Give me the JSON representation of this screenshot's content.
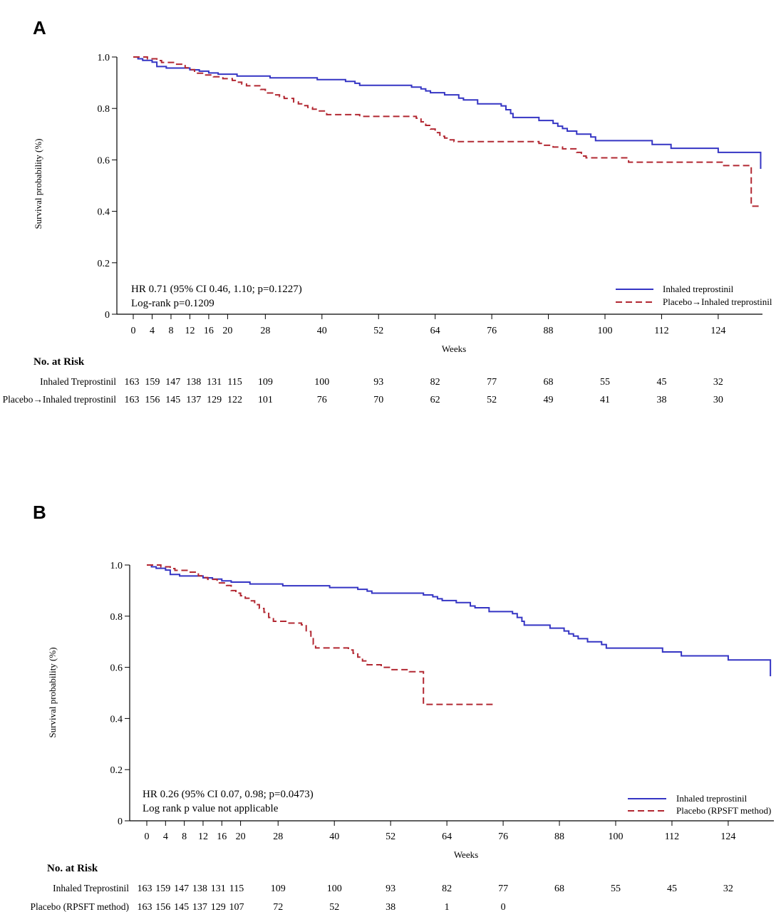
{
  "chart_data": [
    {
      "type": "line",
      "panel": "A",
      "title": "",
      "xlabel": "Weeks",
      "ylabel": "Survival probability (%)",
      "xlim": [
        0,
        134
      ],
      "ylim": [
        0,
        1.0
      ],
      "xticks": [
        0,
        4,
        8,
        12,
        16,
        20,
        28,
        40,
        52,
        64,
        76,
        88,
        100,
        112,
        124
      ],
      "yticks": [
        {
          "v": 0,
          "label": "0"
        },
        {
          "v": 0.2,
          "label": "0.2"
        },
        {
          "v": 0.4,
          "label": "0.4"
        },
        {
          "v": 0.6,
          "label": "0.6"
        },
        {
          "v": 0.8,
          "label": "0.8"
        },
        {
          "v": 1.0,
          "label": "1.0"
        }
      ],
      "annotations": [
        "HR 0.71 (95% CI 0.46, 1.10; p=0.1227)",
        "Log-rank p=0.1209"
      ],
      "legend_position": "bottom-right",
      "series": [
        {
          "name": "Inhaled treprostinil",
          "color": "#3535c4",
          "dash": "solid",
          "points": [
            [
              0,
              1.0
            ],
            [
              1,
              0.993
            ],
            [
              2,
              0.987
            ],
            [
              4,
              0.98
            ],
            [
              5,
              0.963
            ],
            [
              7,
              0.957
            ],
            [
              12,
              0.95
            ],
            [
              14,
              0.945
            ],
            [
              16,
              0.938
            ],
            [
              18,
              0.933
            ],
            [
              22,
              0.926
            ],
            [
              29,
              0.919
            ],
            [
              39,
              0.912
            ],
            [
              45,
              0.905
            ],
            [
              47,
              0.898
            ],
            [
              48,
              0.89
            ],
            [
              59,
              0.883
            ],
            [
              61,
              0.876
            ],
            [
              62,
              0.868
            ],
            [
              63,
              0.861
            ],
            [
              66,
              0.853
            ],
            [
              69,
              0.84
            ],
            [
              70,
              0.833
            ],
            [
              73,
              0.818
            ],
            [
              78,
              0.81
            ],
            [
              79,
              0.795
            ],
            [
              80,
              0.78
            ],
            [
              80.5,
              0.765
            ],
            [
              86,
              0.753
            ],
            [
              89,
              0.742
            ],
            [
              90,
              0.731
            ],
            [
              91,
              0.722
            ],
            [
              92,
              0.712
            ],
            [
              94,
              0.7
            ],
            [
              97,
              0.689
            ],
            [
              98,
              0.675
            ],
            [
              110,
              0.66
            ],
            [
              114,
              0.645
            ],
            [
              124,
              0.629
            ],
            [
              133,
              0.629
            ],
            [
              133,
              0.565
            ]
          ]
        },
        {
          "name": "Placebo→Inhaled treprostinil",
          "color": "#b22832",
          "dash": "dashed",
          "points": [
            [
              0,
              1.0
            ],
            [
              3,
              0.993
            ],
            [
              5,
              0.986
            ],
            [
              6,
              0.979
            ],
            [
              9,
              0.972
            ],
            [
              11,
              0.958
            ],
            [
              12,
              0.951
            ],
            [
              13,
              0.937
            ],
            [
              15,
              0.93
            ],
            [
              17,
              0.923
            ],
            [
              19,
              0.916
            ],
            [
              21,
              0.909
            ],
            [
              22,
              0.902
            ],
            [
              23,
              0.895
            ],
            [
              24,
              0.888
            ],
            [
              27,
              0.874
            ],
            [
              28,
              0.86
            ],
            [
              30,
              0.853
            ],
            [
              31,
              0.846
            ],
            [
              32,
              0.839
            ],
            [
              34,
              0.825
            ],
            [
              35,
              0.818
            ],
            [
              36,
              0.811
            ],
            [
              37,
              0.804
            ],
            [
              38,
              0.797
            ],
            [
              39,
              0.79
            ],
            [
              41,
              0.776
            ],
            [
              48,
              0.769
            ],
            [
              60,
              0.762
            ],
            [
              61,
              0.748
            ],
            [
              62,
              0.734
            ],
            [
              63,
              0.72
            ],
            [
              64,
              0.706
            ],
            [
              65,
              0.692
            ],
            [
              66,
              0.685
            ],
            [
              67,
              0.678
            ],
            [
              68,
              0.671
            ],
            [
              86,
              0.664
            ],
            [
              87,
              0.657
            ],
            [
              89,
              0.65
            ],
            [
              91,
              0.643
            ],
            [
              94,
              0.629
            ],
            [
              95,
              0.615
            ],
            [
              96,
              0.608
            ],
            [
              105,
              0.591
            ],
            [
              125,
              0.578
            ],
            [
              131,
              0.565
            ],
            [
              131,
              0.42
            ],
            [
              133,
              0.42
            ]
          ]
        }
      ],
      "risk_table": {
        "title": "No. at Risk",
        "times": [
          0,
          4,
          8,
          12,
          16,
          20,
          28,
          40,
          52,
          64,
          76,
          88,
          100,
          112,
          124
        ],
        "rows": [
          {
            "label": "Inhaled Treprostinil",
            "values": [
              "163",
              "159",
              "147",
              "138",
              "131",
              "115",
              "109",
              "100",
              "93",
              "82",
              "77",
              "68",
              "55",
              "45",
              "32"
            ]
          },
          {
            "label": "Placebo→Inhaled treprostinil",
            "values": [
              "163",
              "156",
              "145",
              "137",
              "129",
              "122",
              "101",
              "76",
              "70",
              "62",
              "52",
              "49",
              "41",
              "38",
              "30"
            ]
          }
        ]
      }
    },
    {
      "type": "line",
      "panel": "B",
      "title": "",
      "xlabel": "Weeks",
      "ylabel": "Survival probability (%)",
      "xlim": [
        0,
        134
      ],
      "ylim": [
        0,
        1.0
      ],
      "xticks": [
        0,
        4,
        8,
        12,
        16,
        20,
        28,
        40,
        52,
        64,
        76,
        88,
        100,
        112,
        124
      ],
      "yticks": [
        {
          "v": 0,
          "label": "0"
        },
        {
          "v": 0.2,
          "label": "0.2"
        },
        {
          "v": 0.4,
          "label": "0.4"
        },
        {
          "v": 0.6,
          "label": "0.6"
        },
        {
          "v": 0.8,
          "label": "0.8"
        },
        {
          "v": 1.0,
          "label": "1.0"
        }
      ],
      "annotations": [
        "HR 0.26 (95% CI 0.07, 0.98; p=0.0473)",
        "Log rank p value not applicable"
      ],
      "legend_position": "bottom-right",
      "series": [
        {
          "name": "Inhaled treprostinil",
          "color": "#3535c4",
          "dash": "solid",
          "points": [
            [
              0,
              1.0
            ],
            [
              1,
              0.993
            ],
            [
              2,
              0.987
            ],
            [
              4,
              0.98
            ],
            [
              5,
              0.963
            ],
            [
              7,
              0.957
            ],
            [
              12,
              0.95
            ],
            [
              14,
              0.945
            ],
            [
              16,
              0.938
            ],
            [
              18,
              0.933
            ],
            [
              22,
              0.926
            ],
            [
              29,
              0.919
            ],
            [
              39,
              0.912
            ],
            [
              45,
              0.905
            ],
            [
              47,
              0.898
            ],
            [
              48,
              0.89
            ],
            [
              59,
              0.883
            ],
            [
              61,
              0.876
            ],
            [
              62,
              0.868
            ],
            [
              63,
              0.861
            ],
            [
              66,
              0.853
            ],
            [
              69,
              0.84
            ],
            [
              70,
              0.833
            ],
            [
              73,
              0.818
            ],
            [
              78,
              0.81
            ],
            [
              79,
              0.795
            ],
            [
              80,
              0.78
            ],
            [
              80.5,
              0.765
            ],
            [
              86,
              0.753
            ],
            [
              89,
              0.742
            ],
            [
              90,
              0.731
            ],
            [
              91,
              0.722
            ],
            [
              92,
              0.712
            ],
            [
              94,
              0.7
            ],
            [
              97,
              0.689
            ],
            [
              98,
              0.675
            ],
            [
              110,
              0.66
            ],
            [
              114,
              0.645
            ],
            [
              124,
              0.629
            ],
            [
              133,
              0.629
            ],
            [
              133,
              0.565
            ]
          ]
        },
        {
          "name": "Placebo (RPSFT method)",
          "color": "#b22832",
          "dash": "dashed",
          "points": [
            [
              0,
              1.0
            ],
            [
              3,
              0.993
            ],
            [
              5,
              0.986
            ],
            [
              6,
              0.979
            ],
            [
              9,
              0.972
            ],
            [
              11,
              0.958
            ],
            [
              12,
              0.951
            ],
            [
              13,
              0.944
            ],
            [
              15,
              0.93
            ],
            [
              17,
              0.92
            ],
            [
              18,
              0.9
            ],
            [
              19,
              0.89
            ],
            [
              20,
              0.88
            ],
            [
              21,
              0.87
            ],
            [
              22,
              0.86
            ],
            [
              23,
              0.845
            ],
            [
              24,
              0.83
            ],
            [
              25,
              0.815
            ],
            [
              26,
              0.795
            ],
            [
              27,
              0.78
            ],
            [
              30,
              0.773
            ],
            [
              33,
              0.766
            ],
            [
              34,
              0.74
            ],
            [
              35,
              0.715
            ],
            [
              35.5,
              0.69
            ],
            [
              36,
              0.676
            ],
            [
              43,
              0.668
            ],
            [
              44,
              0.655
            ],
            [
              45,
              0.64
            ],
            [
              46,
              0.625
            ],
            [
              47,
              0.61
            ],
            [
              50,
              0.6
            ],
            [
              52,
              0.591
            ],
            [
              56,
              0.583
            ],
            [
              59,
              0.57
            ],
            [
              59,
              0.455
            ],
            [
              74,
              0.455
            ]
          ]
        }
      ],
      "risk_table": {
        "title": "No. at Risk",
        "times": [
          0,
          4,
          8,
          12,
          16,
          20,
          28,
          40,
          52,
          64,
          76,
          88,
          100,
          112,
          124
        ],
        "rows": [
          {
            "label": "Inhaled Treprostinil",
            "values": [
              "163",
              "159",
              "147",
              "138",
              "131",
              "115",
              "109",
              "100",
              "93",
              "82",
              "77",
              "68",
              "55",
              "45",
              "32"
            ]
          },
          {
            "label": "Placebo (RPSFT method)",
            "values": [
              "163",
              "156",
              "145",
              "137",
              "129",
              "107",
              "72",
              "52",
              "38",
              "1",
              "0",
              "",
              "",
              "",
              ""
            ]
          }
        ]
      }
    }
  ]
}
